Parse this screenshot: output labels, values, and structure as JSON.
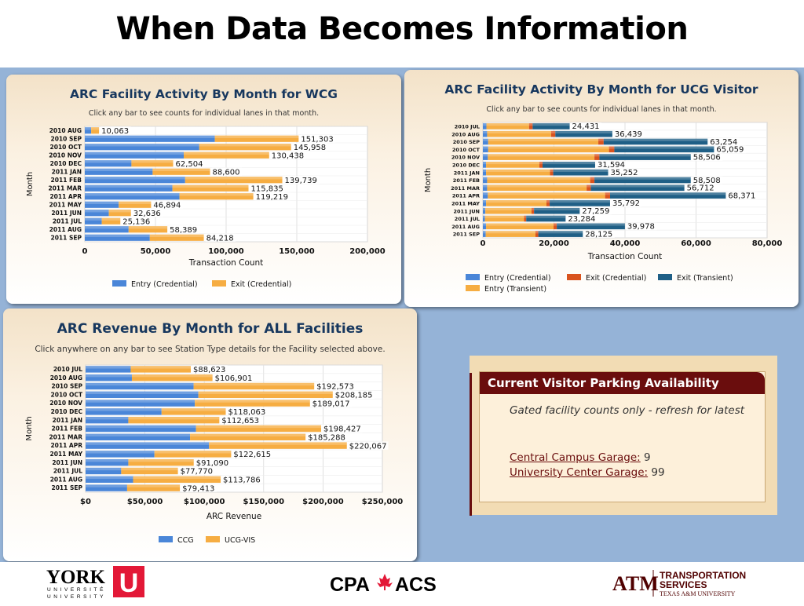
{
  "slide": {
    "title": "When Data Becomes Information"
  },
  "chart_data": [
    {
      "type": "bar",
      "orientation": "horizontal",
      "stacked": true,
      "title": "ARC Facility Activity By Month for WCG",
      "subtitle": "Click any bar to see counts for individual lanes in that month.",
      "xlabel": "Transaction Count",
      "ylabel": "Month",
      "xlim": [
        0,
        200000
      ],
      "xticks": [
        "0",
        "50,000",
        "100,000",
        "150,000",
        "200,000"
      ],
      "categories": [
        "2010 AUG",
        "2010 SEP",
        "2010 OCT",
        "2010 NOV",
        "2010 DEC",
        "2011 JAN",
        "2011 FEB",
        "2011 MAR",
        "2011 APR",
        "2011 MAY",
        "2011 JUN",
        "2011 JUL",
        "2011 AUG",
        "2011 SEP"
      ],
      "series": [
        {
          "name": "Entry (Credential)",
          "color": "#4a86d8",
          "values": [
            4500,
            92000,
            81000,
            70000,
            33000,
            48000,
            71000,
            62000,
            67000,
            24000,
            17000,
            12000,
            31000,
            46000
          ]
        },
        {
          "name": "Exit (Credential)",
          "color": "#f6ad42",
          "values": [
            5563,
            59303,
            64958,
            60438,
            29504,
            40600,
            68739,
            53835,
            52219,
            22894,
            15636,
            13136,
            27389,
            38218
          ]
        }
      ],
      "totals": [
        "10,063",
        "151,303",
        "145,958",
        "130,438",
        "62,504",
        "88,600",
        "139,739",
        "115,835",
        "119,219",
        "46,894",
        "32,636",
        "25,136",
        "58,389",
        "84,218"
      ],
      "grid": true,
      "legend": "bottom"
    },
    {
      "type": "bar",
      "orientation": "horizontal",
      "stacked": true,
      "title": "ARC Facility Activity By Month for UCG Visitor",
      "subtitle": "Click any bar to see counts for individual lanes in that month.",
      "xlabel": "Transaction Count",
      "ylabel": "Month",
      "xlim": [
        0,
        80000
      ],
      "xticks": [
        "0",
        "20,000",
        "40,000",
        "60,000",
        "80,000"
      ],
      "categories": [
        "2010 JUL",
        "2010 AUG",
        "2010 SEP",
        "2010 OCT",
        "2010 NOV",
        "2010 DEC",
        "2011 JAN",
        "2011 FEB",
        "2011 MAR",
        "2011 APR",
        "2011 MAY",
        "2011 JUN",
        "2011 JUL",
        "2011 AUG",
        "2011 SEP"
      ],
      "series": [
        {
          "name": "Entry (Credential)",
          "color": "#4a86d8",
          "values": [
            1000,
            1200,
            1500,
            1500,
            1400,
            900,
            900,
            1200,
            1200,
            1400,
            900,
            700,
            600,
            900,
            800
          ]
        },
        {
          "name": "Entry (Transient)",
          "color": "#f6ad42",
          "values": [
            12000,
            18000,
            31000,
            34000,
            30000,
            15000,
            18000,
            29000,
            28000,
            33000,
            17000,
            13000,
            11000,
            19000,
            14000
          ]
        },
        {
          "name": "Exit (Credential)",
          "color": "#d9531e",
          "values": [
            1000,
            1200,
            1500,
            1500,
            1400,
            900,
            900,
            1200,
            1200,
            1400,
            900,
            700,
            600,
            900,
            800
          ]
        },
        {
          "name": "Exit (Transient)",
          "color": "#1f5f86",
          "values": [
            10431,
            16039,
            29254,
            28059,
            25706,
            14794,
            15452,
            27108,
            26312,
            32571,
            16992,
            12859,
            11084,
            19178,
            12525
          ]
        }
      ],
      "totals": [
        "24,431",
        "36,439",
        "63,254",
        "65,059",
        "58,506",
        "31,594",
        "35,252",
        "58,508",
        "56,712",
        "68,371",
        "35,792",
        "27,259",
        "23,284",
        "39,978",
        "28,125"
      ],
      "grid": true,
      "legend": "bottom"
    },
    {
      "type": "bar",
      "orientation": "horizontal",
      "stacked": true,
      "title": "ARC Revenue By Month for ALL Facilities",
      "subtitle": "Click anywhere on any bar to see Station Type details for the Facility selected above.",
      "xlabel": "ARC Revenue",
      "ylabel": "Month",
      "xlim": [
        0,
        250000
      ],
      "xticks": [
        "$0",
        "$50,000",
        "$100,000",
        "$150,000",
        "$200,000",
        "$250,000"
      ],
      "categories": [
        "2010 JUL",
        "2010 AUG",
        "2010 SEP",
        "2010 OCT",
        "2010 NOV",
        "2010 DEC",
        "2011 JAN",
        "2011 FEB",
        "2011 MAR",
        "2011 APR",
        "2011 MAY",
        "2011 JUN",
        "2011 JUL",
        "2011 AUG",
        "2011 SEP"
      ],
      "series": [
        {
          "name": "CCG",
          "color": "#4a86d8",
          "values": [
            38000,
            39000,
            91000,
            95000,
            92000,
            64000,
            36000,
            93000,
            88000,
            104000,
            58000,
            36000,
            30000,
            40000,
            35000
          ]
        },
        {
          "name": "UCG-VIS",
          "color": "#f6ad42",
          "values": [
            50623,
            67901,
            101573,
            113185,
            97017,
            54063,
            76653,
            105427,
            97288,
            116067,
            64615,
            55090,
            47770,
            73786,
            44413
          ]
        }
      ],
      "totals": [
        "$88,623",
        "$106,901",
        "$192,573",
        "$208,185",
        "$189,017",
        "$118,063",
        "$112,653",
        "$198,427",
        "$185,288",
        "$220,067",
        "$122,615",
        "$91,090",
        "$77,770",
        "$113,786",
        "$79,413"
      ],
      "grid": true,
      "legend": "bottom"
    }
  ],
  "parking": {
    "title": "Current Visitor Parking Availability",
    "note": "Gated facility counts only - refresh for latest",
    "garages": [
      {
        "name": "Central Campus Garage:",
        "count": "9"
      },
      {
        "name": "University Center Garage:",
        "count": "99"
      }
    ]
  },
  "footer": {
    "york": {
      "word": "YORK",
      "line1": "UNIVERSITÉ",
      "line2": "UNIVERSITY",
      "mark": "U",
      "color": "#e31837"
    },
    "cpa": {
      "left": "CPA",
      "right": "ACS",
      "leaf_color": "#e31837"
    },
    "tamu": {
      "mark": "ATM",
      "line1": "TRANSPORTATION",
      "line2": "SERVICES",
      "line3": "TEXAS A&M UNIVERSITY",
      "color": "#500000"
    }
  }
}
